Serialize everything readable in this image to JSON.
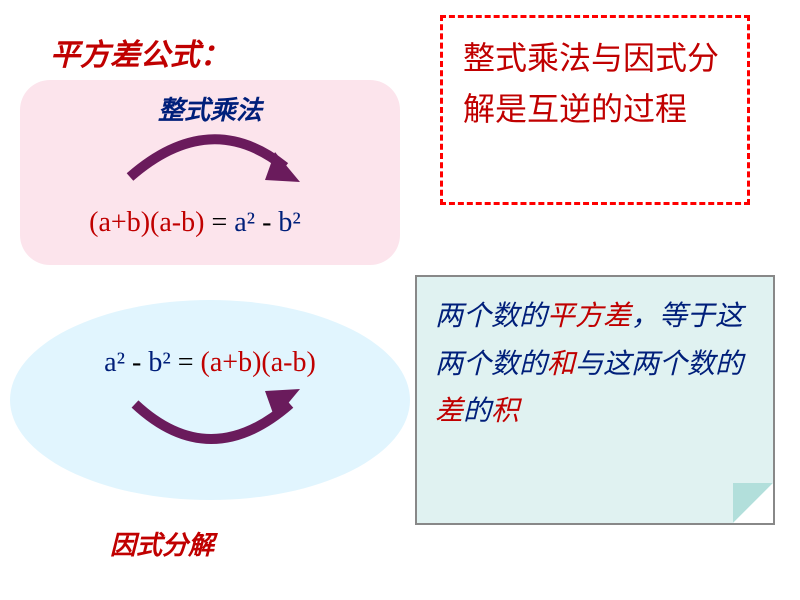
{
  "title": {
    "text": "平方差公式：",
    "color": "#c00000"
  },
  "top_box": {
    "bg_color": "#fce4ec",
    "label": {
      "text": "整式乘法",
      "color": "#001f7a"
    },
    "arrow_color": "#6a1b5c",
    "formula": {
      "part1": "(a+b)(a-b)",
      "part1_color": "#c00000",
      "eq": " = ",
      "eq_color": "#000000",
      "part2": "a²",
      "part2_color": "#001f7a",
      "sep": "  -  ",
      "sep_color": "#000000",
      "part3": "b²",
      "part3_color": "#001f7a"
    }
  },
  "dashed_box": {
    "border_color": "#ff0000",
    "text": "整式乘法与因式分解是互逆的过程",
    "text_color": "#c00000"
  },
  "ellipse_box": {
    "bg_color": "#e1f5fe",
    "arrow_color": "#6a1b5c",
    "formula": {
      "part1": "a²",
      "part1_color": "#001f7a",
      "sep1": "  -  ",
      "sep1_color": "#000000",
      "part2": "b²",
      "part2_color": "#001f7a",
      "eq": " =  ",
      "eq_color": "#000000",
      "part3": "(a+b)(a-b)",
      "part3_color": "#c00000"
    },
    "label": {
      "text": "因式分解",
      "color": "#c00000"
    }
  },
  "note_box": {
    "bg_color": "#e0f2f1",
    "fold_color": "#b2dfdb",
    "segments": [
      {
        "text": "两个数的",
        "color": "#001f7a"
      },
      {
        "text": "平方差",
        "color": "#c00000"
      },
      {
        "text": "，等于这两个数的",
        "color": "#001f7a"
      },
      {
        "text": "和",
        "color": "#c00000"
      },
      {
        "text": "与这两个数的",
        "color": "#001f7a"
      },
      {
        "text": "差",
        "color": "#c00000"
      },
      {
        "text": "的",
        "color": "#001f7a"
      },
      {
        "text": "积",
        "color": "#c00000"
      }
    ]
  }
}
